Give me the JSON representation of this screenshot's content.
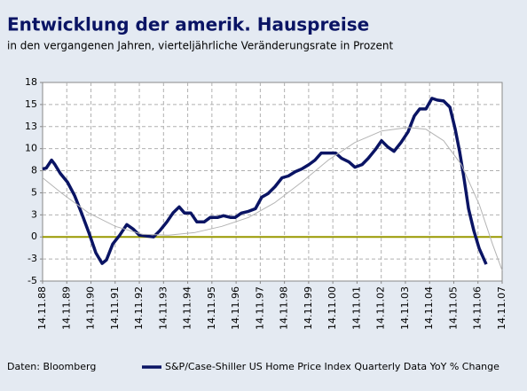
{
  "chart_data": {
    "type": "line",
    "title": "Entwicklung der amerik. Hauspreise",
    "subtitle": "in den vergangenen Jahren, vierteljährliche Veränderungsrate in Prozent",
    "source": "Daten: Bloomberg",
    "xlim": [
      1988.87,
      2007.87
    ],
    "xticks": [
      {
        "value": 1988.87,
        "label": "14.11.88"
      },
      {
        "value": 1989.87,
        "label": "14.11.89"
      },
      {
        "value": 1990.87,
        "label": "14.11.90"
      },
      {
        "value": 1991.87,
        "label": "14.11.91"
      },
      {
        "value": 1992.87,
        "label": "14.11.92"
      },
      {
        "value": 1993.87,
        "label": "14.11.93"
      },
      {
        "value": 1994.87,
        "label": "14.11.94"
      },
      {
        "value": 1995.87,
        "label": "14.11.95"
      },
      {
        "value": 1996.87,
        "label": "14.11.96"
      },
      {
        "value": 1997.87,
        "label": "14.11.97"
      },
      {
        "value": 1998.87,
        "label": "14.11.98"
      },
      {
        "value": 1999.87,
        "label": "14.11.99"
      },
      {
        "value": 2000.87,
        "label": "14.11.00"
      },
      {
        "value": 2001.87,
        "label": "14.11.01"
      },
      {
        "value": 2002.87,
        "label": "14.11.02"
      },
      {
        "value": 2003.87,
        "label": "14.11.03"
      },
      {
        "value": 2004.87,
        "label": "14.11.04"
      },
      {
        "value": 2005.87,
        "label": "14.11.05"
      },
      {
        "value": 2006.87,
        "label": "14.11.06"
      },
      {
        "value": 2007.87,
        "label": "14.11.07"
      }
    ],
    "ylim": [
      -5,
      17.5
    ],
    "yticks": [
      {
        "value": 17.5,
        "label": "18"
      },
      15,
      {
        "value": 12.5,
        "label": "13"
      },
      10,
      {
        "value": 7.5,
        "label": "8"
      },
      5,
      {
        "value": 2.5,
        "label": "3"
      },
      0,
      {
        "value": -2.5,
        "label": "-3"
      },
      -5
    ],
    "grid": true,
    "zero_line_color": "#999900",
    "series": [
      {
        "name": "S&P/Case-Shiller US Home Price Index Quarterly Data YoY % Change",
        "color": "#0a1464",
        "x": [
          1988.87,
          1989.02,
          1989.24,
          1989.38,
          1989.6,
          1989.9,
          1990.19,
          1990.48,
          1990.78,
          1991.07,
          1991.33,
          1991.51,
          1991.77,
          1992.06,
          1992.35,
          1992.61,
          1992.87,
          1993.16,
          1993.46,
          1993.71,
          1994.01,
          1994.26,
          1994.52,
          1994.74,
          1995.0,
          1995.25,
          1995.55,
          1995.8,
          1996.1,
          1996.35,
          1996.65,
          1996.83,
          1997.09,
          1997.38,
          1997.67,
          1997.93,
          1998.19,
          1998.48,
          1998.77,
          1999.03,
          1999.32,
          1999.58,
          1999.88,
          2000.13,
          2000.39,
          2000.68,
          2000.98,
          2001.23,
          2001.53,
          2001.78,
          2002.08,
          2002.33,
          2002.63,
          2002.88,
          2003.14,
          2003.4,
          2003.69,
          2003.98,
          2004.24,
          2004.46,
          2004.72,
          2004.97,
          2005.19,
          2005.45,
          2005.71,
          2005.93,
          2006.11,
          2006.29,
          2006.48,
          2006.7,
          2006.92,
          2007.21
        ],
        "values": [
          7.7,
          7.8,
          8.7,
          8.2,
          7.2,
          6.2,
          4.7,
          2.7,
          0.5,
          -1.8,
          -3.0,
          -2.6,
          -0.8,
          0.2,
          1.4,
          0.9,
          0.2,
          0.1,
          0,
          0.7,
          1.7,
          2.7,
          3.4,
          2.7,
          2.7,
          1.7,
          1.7,
          2.2,
          2.2,
          2.4,
          2.2,
          2.2,
          2.7,
          2.9,
          3.2,
          4.5,
          4.9,
          5.7,
          6.7,
          6.9,
          7.4,
          7.7,
          8.2,
          8.7,
          9.5,
          9.5,
          9.5,
          8.9,
          8.5,
          7.9,
          8.2,
          8.9,
          9.9,
          10.9,
          10.2,
          9.7,
          10.7,
          11.9,
          13.7,
          14.5,
          14.5,
          15.7,
          15.5,
          15.4,
          14.7,
          12.2,
          9.7,
          6.7,
          3.2,
          0.7,
          -1.3,
          -3.1
        ]
      },
      {
        "color": "#b4b4b4",
        "x": [
          1988.87,
          1989.68,
          1990.78,
          1991.88,
          1992.98,
          1994.08,
          1995.18,
          1996.28,
          1997.38,
          1998.48,
          1999.58,
          2000.68,
          2001.78,
          2002.88,
          2003.98,
          2004.72,
          2005.45,
          2006.18,
          2006.92,
          2007.47,
          2007.87
        ],
        "values": [
          6.7,
          4.9,
          2.7,
          1.2,
          0.3,
          0.2,
          0.5,
          1.2,
          2.2,
          3.9,
          6.2,
          8.7,
          10.7,
          12.0,
          12.4,
          12.2,
          10.9,
          8.2,
          3.7,
          -0.8,
          -3.8
        ]
      }
    ]
  }
}
